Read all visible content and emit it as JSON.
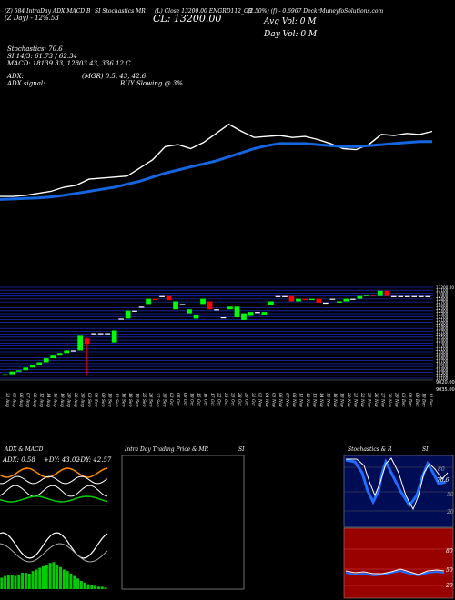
{
  "header": {
    "symbol_info": "(Z) 584 IntraDay ADX MACD B",
    "stoch_title": "SI Stochastics MR",
    "close_info": "(L) Close 13200.00 ENGRD112_GB",
    "ma_info": "(2.50%) (f) - 0.6967 DeckrMuneyfoSolutions.com",
    "day_row": "(Z Day) - 12%.53",
    "price_big": "CL: 13200.00",
    "avg_vol": "Avg Vol: 0  M",
    "day_vol": "Day Vol: 0  M",
    "stoch_line": "Stochastics: 70.6",
    "si_line": "SI 14/3: 61.73 / 62.34",
    "macd_line": "MACD: 18139.33,  12803.43,  336.12  C",
    "adx_line": "ADX:",
    "mgr_line": "(MGR) 0.5,  43,  42.6",
    "adx_signal": "ADX  signal:",
    "buy_signal": "BUY Slowing @ 3%"
  },
  "colors": {
    "price": "#ffffff",
    "ma": "#1565e0",
    "up": "#00ff00",
    "down": "#ff0000",
    "grid": "#1c2bb8",
    "stoch_panel": "#000d55",
    "si_panel": "#990000"
  },
  "chart_data": [
    {
      "type": "line",
      "name": "price-ma",
      "series": [
        {
          "values": [
            8,
            8,
            9,
            11,
            13,
            17,
            19,
            25,
            26,
            27,
            28,
            36,
            44,
            57,
            59,
            55,
            61,
            70,
            79,
            72,
            66,
            67,
            68,
            66,
            67,
            64,
            60,
            55,
            54,
            59,
            69,
            68,
            70,
            69,
            72
          ]
        },
        {
          "values": [
            5,
            5.5,
            6,
            6.5,
            7.5,
            9,
            11,
            13,
            15,
            17,
            20,
            23,
            27,
            31,
            34,
            37,
            40,
            43,
            47,
            51,
            55,
            58,
            60,
            60,
            60,
            59,
            58,
            57,
            57,
            58,
            59,
            60,
            61,
            62,
            62
          ]
        }
      ]
    },
    {
      "type": "candlestick",
      "categories": [
        "31 Aug",
        "05 Aug",
        "06 Aug",
        "07 Aug",
        "08 Aug",
        "12 Aug",
        "14 Aug",
        "16 Aug",
        "19 Aug",
        "20 Aug",
        "28 Aug",
        "30 Aug",
        "03 Sep",
        "06 Sep",
        "09 Sep",
        "10 Sep",
        "12 Sep",
        "16 Sep",
        "18 Sep",
        "19 Sep",
        "25 Sep",
        "26 Sep",
        "27 Sep",
        "30 Sep",
        "02 Oct",
        "08 Oct",
        "09 Oct",
        "10 Oct",
        "15 Oct",
        "16 Oct",
        "17 Oct",
        "22 Oct",
        "23 Oct",
        "25 Oct",
        "28 Oct",
        "29 Oct",
        "31 Oct",
        "01 Nov",
        "04 Nov",
        "05 Nov",
        "06 Nov",
        "07 Nov",
        "08 Nov",
        "11 Nov",
        "12 Nov",
        "13 Nov",
        "14 Nov",
        "15 Nov",
        "18 Nov",
        "19 Nov",
        "20 Nov",
        "21 Nov",
        "22 Nov",
        "25 Nov",
        "26 Nov",
        "27 Nov",
        "28 Nov",
        "29 Nov",
        "03 Dec",
        "06 Dec",
        "09 Dec",
        "10 Dec",
        "11 Dec"
      ],
      "candles": [
        {
          "o": 2,
          "c": 3
        },
        {
          "o": 3,
          "c": 5
        },
        {
          "o": 5,
          "c": 6
        },
        {
          "o": 6,
          "c": 8
        },
        {
          "o": 8,
          "c": 10
        },
        {
          "o": 10,
          "c": 12
        },
        {
          "o": 12,
          "c": 15
        },
        {
          "o": 15,
          "c": 17
        },
        {
          "o": 17,
          "c": 19
        },
        {
          "o": 19,
          "c": 21
        },
        {
          "o": 21,
          "c": 21
        },
        {
          "o": 21,
          "c": 32
        },
        {
          "o": 30,
          "c": 26,
          "h": 31,
          "l": 2
        },
        {
          "o": 34,
          "c": 34
        },
        {
          "o": 34,
          "c": 34
        },
        {
          "o": 34,
          "c": 34
        },
        {
          "o": 27,
          "c": 36
        },
        {
          "o": 45,
          "c": 45
        },
        {
          "o": 45,
          "c": 51
        },
        {
          "o": 51,
          "c": 51
        },
        {
          "o": 54,
          "c": 54
        },
        {
          "o": 56,
          "c": 60
        },
        {
          "o": 60,
          "c": 59
        },
        {
          "o": 62,
          "c": 62
        },
        {
          "o": 62,
          "c": 59
        },
        {
          "o": 52,
          "c": 58
        },
        {
          "o": 56,
          "c": 56
        },
        {
          "o": 49,
          "c": 52
        },
        {
          "o": 45,
          "c": 48
        },
        {
          "o": 56,
          "c": 60
        },
        {
          "o": 58,
          "c": 52
        },
        {
          "o": 52,
          "c": 52
        },
        {
          "o": 46,
          "c": 46
        },
        {
          "o": 52,
          "c": 54
        },
        {
          "o": 46,
          "c": 54
        },
        {
          "o": 44,
          "c": 49
        },
        {
          "o": 47,
          "c": 50
        },
        {
          "o": 50,
          "c": 50
        },
        {
          "o": 48,
          "c": 50
        },
        {
          "o": 55,
          "c": 58
        },
        {
          "o": 62,
          "c": 62
        },
        {
          "o": 62,
          "c": 62
        },
        {
          "o": 62,
          "c": 58
        },
        {
          "o": 58,
          "c": 60
        },
        {
          "o": 60,
          "c": 59
        },
        {
          "o": 59,
          "c": 60
        },
        {
          "o": 60,
          "c": 57
        },
        {
          "o": 57,
          "c": 57
        },
        {
          "o": 60,
          "c": 60
        },
        {
          "o": 57,
          "c": 58
        },
        {
          "o": 58,
          "c": 60
        },
        {
          "o": 60,
          "c": 60
        },
        {
          "o": 60,
          "c": 62
        },
        {
          "o": 62,
          "c": 63
        },
        {
          "o": 63,
          "c": 62
        },
        {
          "o": 62,
          "c": 66
        },
        {
          "o": 66,
          "c": 62
        },
        {
          "o": 62,
          "c": 62
        },
        {
          "o": 62,
          "c": 62
        },
        {
          "o": 62,
          "c": 62
        },
        {
          "o": 62,
          "c": 62
        },
        {
          "o": 62,
          "c": 62
        },
        {
          "o": 62,
          "c": 62
        }
      ],
      "price_labels": [
        "13200.00",
        "13100",
        "13000",
        "12900",
        "12800",
        "12700",
        "12600",
        "12500",
        "12400",
        "12300",
        "12200",
        "12100",
        "12000",
        "11900",
        "11800",
        "11700",
        "11600",
        "11500",
        "11400",
        "11300",
        "11200",
        "11100",
        "11000",
        "10900",
        "10800",
        "10700",
        "10600",
        "10500",
        "10400",
        "10300",
        "10200",
        "10100"
      ],
      "bottom_labels": [
        "9020.00",
        "9035.00"
      ]
    },
    {
      "type": "line",
      "name": "adx-macd",
      "title": "ADX  & MACD",
      "labels": [
        "ADX: 0.58",
        "+DY: 43.02",
        "-DY: 42.57"
      ]
    },
    {
      "type": "line",
      "name": "intraday",
      "title": "Intra  Day Trading Price  & MR",
      "right_label": "SI"
    },
    {
      "type": "line",
      "name": "stochastics",
      "title": "Stochastics  & R",
      "right_label": "SI",
      "levels": [
        "80",
        "50",
        "20"
      ],
      "si_levels": [
        "80",
        "50",
        "20"
      ],
      "value_tag": "70.6"
    }
  ]
}
